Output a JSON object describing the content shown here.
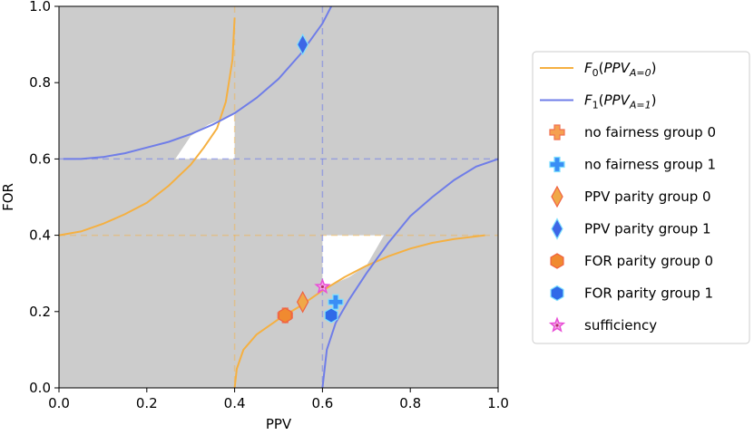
{
  "chart_data": {
    "type": "line",
    "title": "",
    "xlabel": "PPV",
    "ylabel": "FOR",
    "xlim": [
      0,
      1
    ],
    "ylim": [
      0,
      1
    ],
    "xticks": [
      "0.0",
      "0.2",
      "0.4",
      "0.6",
      "0.8",
      "1.0"
    ],
    "yticks": [
      "0.0",
      "0.2",
      "0.4",
      "0.6",
      "0.8",
      "1.0"
    ],
    "grid": false,
    "legend_position": "right",
    "background_color": "#cccccc",
    "colors": {
      "group0_curve": "#f5b041",
      "group1_curve": "#6f7de8",
      "no_fairness_0": "#f5a050",
      "no_fairness_1": "#3a8ef5",
      "ppv_parity_0": "#f0a848",
      "ppv_parity_1": "#3d66e6",
      "for_parity_0": "#f08a30",
      "for_parity_1": "#2f6ae8",
      "sufficiency": "#e84fd6"
    },
    "series": [
      {
        "name": "F_0(PPV_{A=0})",
        "legend_main": "F",
        "legend_sub": "0",
        "legend_arg": "PPV",
        "legend_argsub": "A=0",
        "points": [
          [
            0.0,
            0.4
          ],
          [
            0.05,
            0.41
          ],
          [
            0.1,
            0.43
          ],
          [
            0.15,
            0.455
          ],
          [
            0.2,
            0.485
          ],
          [
            0.25,
            0.53
          ],
          [
            0.3,
            0.585
          ],
          [
            0.33,
            0.63
          ],
          [
            0.36,
            0.68
          ],
          [
            0.38,
            0.75
          ],
          [
            0.395,
            0.86
          ],
          [
            0.4,
            0.97
          ]
        ]
      },
      {
        "name": "F_0(PPV_{A=0}) lower branch",
        "points": [
          [
            0.4,
            0.0
          ],
          [
            0.405,
            0.05
          ],
          [
            0.42,
            0.1
          ],
          [
            0.45,
            0.14
          ],
          [
            0.5,
            0.18
          ],
          [
            0.55,
            0.215
          ],
          [
            0.6,
            0.255
          ],
          [
            0.65,
            0.29
          ],
          [
            0.7,
            0.32
          ],
          [
            0.75,
            0.345
          ],
          [
            0.8,
            0.365
          ],
          [
            0.85,
            0.38
          ],
          [
            0.9,
            0.39
          ],
          [
            0.97,
            0.4
          ]
        ]
      },
      {
        "name": "F_1(PPV_{A=1})",
        "legend_main": "F",
        "legend_sub": "1",
        "legend_arg": "PPV",
        "legend_argsub": "A=1",
        "points": [
          [
            0.01,
            0.6
          ],
          [
            0.05,
            0.6
          ],
          [
            0.1,
            0.605
          ],
          [
            0.15,
            0.615
          ],
          [
            0.2,
            0.63
          ],
          [
            0.25,
            0.645
          ],
          [
            0.3,
            0.665
          ],
          [
            0.35,
            0.69
          ],
          [
            0.4,
            0.72
          ],
          [
            0.45,
            0.76
          ],
          [
            0.5,
            0.81
          ],
          [
            0.55,
            0.875
          ],
          [
            0.6,
            0.955
          ],
          [
            0.62,
            1.0
          ]
        ]
      },
      {
        "name": "F_1(PPV_{A=1}) lower branch",
        "points": [
          [
            0.6,
            0.0
          ],
          [
            0.61,
            0.1
          ],
          [
            0.63,
            0.17
          ],
          [
            0.66,
            0.23
          ],
          [
            0.7,
            0.3
          ],
          [
            0.75,
            0.38
          ],
          [
            0.8,
            0.45
          ],
          [
            0.85,
            0.5
          ],
          [
            0.9,
            0.545
          ],
          [
            0.95,
            0.58
          ],
          [
            1.0,
            0.6
          ]
        ]
      }
    ],
    "reference_lines": {
      "ppv_group0": 0.4,
      "ppv_group1": 0.6,
      "for_group0": 0.4,
      "for_group1": 0.6
    },
    "white_regions": [
      [
        [
          0.265,
          0.6
        ],
        [
          0.4,
          0.6
        ],
        [
          0.4,
          0.72
        ],
        [
          0.34,
          0.69
        ],
        [
          0.3,
          0.66
        ]
      ],
      [
        [
          0.6,
          0.4
        ],
        [
          0.6,
          0.26
        ],
        [
          0.66,
          0.29
        ],
        [
          0.7,
          0.32
        ],
        [
          0.72,
          0.36
        ],
        [
          0.74,
          0.4
        ]
      ]
    ],
    "markers": [
      {
        "name": "no fairness group 0",
        "shape": "plus",
        "x": 0.515,
        "y": 0.19,
        "color_key": "no_fairness_0"
      },
      {
        "name": "no fairness group 1",
        "shape": "plus",
        "x": 0.63,
        "y": 0.225,
        "color_key": "no_fairness_1"
      },
      {
        "name": "PPV parity group 0",
        "shape": "diamond",
        "x": 0.555,
        "y": 0.225,
        "color_key": "ppv_parity_0"
      },
      {
        "name": "PPV parity group 1",
        "shape": "diamond",
        "x": 0.555,
        "y": 0.9,
        "color_key": "ppv_parity_1"
      },
      {
        "name": "FOR parity group 0",
        "shape": "hexagon",
        "x": 0.515,
        "y": 0.19,
        "color_key": "for_parity_0"
      },
      {
        "name": "FOR parity group 1",
        "shape": "hexagon",
        "x": 0.62,
        "y": 0.19,
        "color_key": "for_parity_1"
      },
      {
        "name": "sufficiency",
        "shape": "star",
        "x": 0.6,
        "y": 0.265,
        "color_key": "sufficiency"
      }
    ],
    "legend": [
      {
        "kind": "line",
        "series_index": 0,
        "color_key": "group0_curve"
      },
      {
        "kind": "line",
        "series_index": 2,
        "color_key": "group1_curve"
      },
      {
        "kind": "marker",
        "marker_index": 0
      },
      {
        "kind": "marker",
        "marker_index": 1
      },
      {
        "kind": "marker",
        "marker_index": 2
      },
      {
        "kind": "marker",
        "marker_index": 3
      },
      {
        "kind": "marker",
        "marker_index": 4
      },
      {
        "kind": "marker",
        "marker_index": 5
      },
      {
        "kind": "marker",
        "marker_index": 6
      }
    ]
  }
}
